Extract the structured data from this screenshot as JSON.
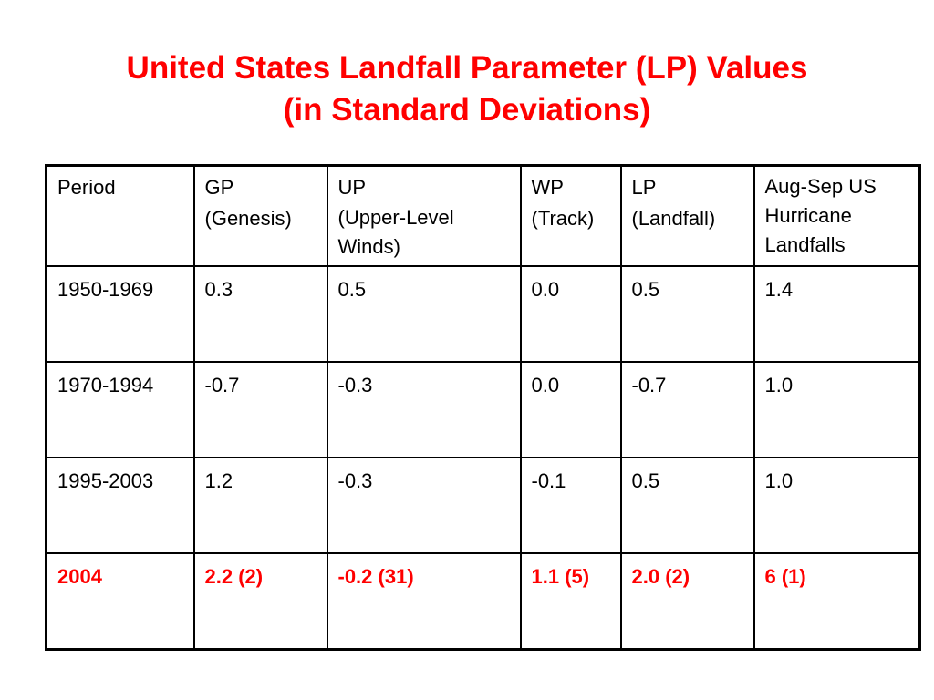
{
  "slide": {
    "title_line1": "United States Landfall Parameter (LP) Values",
    "title_line2": "(in Standard Deviations)"
  },
  "table": {
    "headers": [
      {
        "line1": "Period",
        "line2": ""
      },
      {
        "line1": "GP",
        "line2": "(Genesis)"
      },
      {
        "line1": "UP",
        "line2": "(Upper-Level Winds)"
      },
      {
        "line1": "WP",
        "line2": "(Track)"
      },
      {
        "line1": "LP",
        "line2": "(Landfall)"
      },
      {
        "line1": "Aug-Sep US Hurricane Landfalls",
        "line2": ""
      }
    ],
    "rows": [
      [
        "1950-1969",
        "0.3",
        "0.5",
        "0.0",
        "0.5",
        "1.4"
      ],
      [
        "1970-1994",
        "-0.7",
        "-0.3",
        "0.0",
        "-0.7",
        "1.0"
      ],
      [
        "1995-2003",
        "1.2",
        "-0.3",
        "-0.1",
        "0.5",
        "1.0"
      ],
      [
        "2004",
        "2.2 (2)",
        "-0.2 (31)",
        "1.1 (5)",
        "2.0 (2)",
        "6 (1)"
      ]
    ],
    "highlight_color": "#ff0000",
    "highlight_row_index": 3
  }
}
